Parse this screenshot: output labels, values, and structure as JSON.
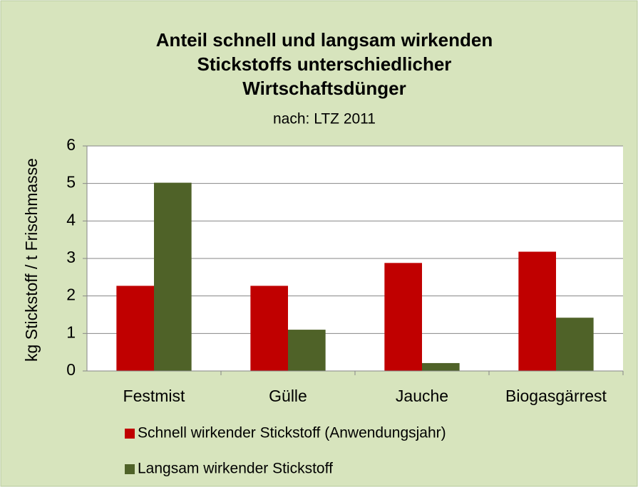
{
  "chart_data": {
    "type": "bar",
    "title": [
      "Anteil schnell und langsam wirkenden",
      "Stickstoffs unterschiedlicher",
      "Wirtschaftsdünger"
    ],
    "subtitle": "nach: LTZ 2011",
    "y_label": "kg Stickstoff / t Frischmasse",
    "categories": [
      "Festmist",
      "Gülle",
      "Jauche",
      "Biogasgärrest"
    ],
    "series": [
      {
        "name": "Schnell wirkender Stickstoff (Anwendungsjahr)",
        "color": "#c00000",
        "values": [
          2.27,
          2.27,
          2.88,
          3.18
        ]
      },
      {
        "name": "Langsam wirkender Stickstoff",
        "color": "#4f6228",
        "values": [
          5.02,
          1.1,
          0.21,
          1.42
        ]
      }
    ],
    "ylim": [
      0,
      6
    ],
    "yticks": [
      0,
      1,
      2,
      3,
      4,
      5,
      6
    ],
    "grid": true,
    "legend": "bottom"
  }
}
